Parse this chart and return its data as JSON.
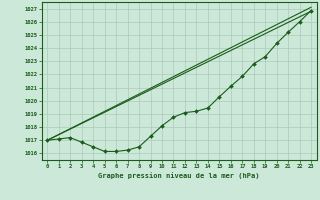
{
  "title": "Graphe pression niveau de la mer (hPa)",
  "bg_color": "#cce8d8",
  "grid_color": "#aacbba",
  "line_color": "#1a5c1a",
  "ylim": [
    1015.5,
    1027.5
  ],
  "xlim": [
    -0.5,
    23.5
  ],
  "yticks": [
    1016,
    1017,
    1018,
    1019,
    1020,
    1021,
    1022,
    1023,
    1024,
    1025,
    1026,
    1027
  ],
  "xticks": [
    0,
    1,
    2,
    3,
    4,
    5,
    6,
    7,
    8,
    9,
    10,
    11,
    12,
    13,
    14,
    15,
    16,
    17,
    18,
    19,
    20,
    21,
    22,
    23
  ],
  "line_straight1": [
    [
      0,
      1017.0
    ],
    [
      23,
      1026.8
    ]
  ],
  "line_straight2": [
    [
      0,
      1017.0
    ],
    [
      23,
      1027.1
    ]
  ],
  "line_curved": [
    1017.0,
    1017.1,
    1017.2,
    1016.85,
    1016.5,
    1016.15,
    1016.15,
    1016.25,
    1016.5,
    1017.3,
    1018.1,
    1018.75,
    1019.1,
    1019.2,
    1019.45,
    1020.3,
    1021.1,
    1021.85,
    1022.8,
    1023.35,
    1024.35,
    1025.2,
    1026.0,
    1026.85
  ]
}
